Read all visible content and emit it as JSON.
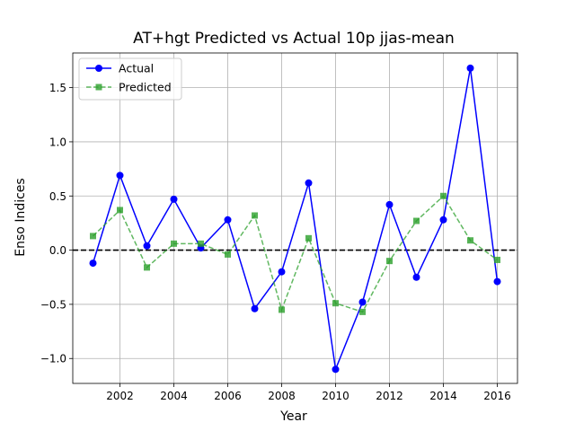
{
  "chart_data": {
    "type": "line",
    "title": "AT+hgt Predicted vs Actual 10p jjas-mean",
    "xlabel": "Year",
    "ylabel": "Enso Indices",
    "xlim": [
      2000.25,
      2016.75
    ],
    "ylim": [
      -1.23,
      1.82
    ],
    "xticks": [
      2002,
      2004,
      2006,
      2008,
      2010,
      2012,
      2014,
      2016
    ],
    "yticks": [
      -1.0,
      -0.5,
      0.0,
      0.5,
      1.0,
      1.5
    ],
    "ytick_labels": [
      "−1.0",
      "−0.5",
      "0.0",
      "0.5",
      "1.0",
      "1.5"
    ],
    "grid": true,
    "legend_position": "top-left",
    "reference_line": {
      "y": 0,
      "style": "dashed",
      "color": "#000000"
    },
    "x": [
      2001,
      2002,
      2003,
      2004,
      2005,
      2006,
      2007,
      2008,
      2009,
      2010,
      2011,
      2012,
      2013,
      2014,
      2015,
      2016
    ],
    "series": [
      {
        "name": "Actual",
        "color": "#0000ff",
        "marker": "circle",
        "line_style": "solid",
        "values": [
          -0.12,
          0.69,
          0.04,
          0.47,
          0.02,
          0.28,
          -0.54,
          -0.2,
          0.62,
          -1.1,
          -0.48,
          0.42,
          -0.25,
          0.28,
          1.68,
          -0.29
        ]
      },
      {
        "name": "Predicted",
        "color": "#2ca02c",
        "marker": "square",
        "line_style": "dashed",
        "values": [
          0.13,
          0.37,
          -0.16,
          0.06,
          0.06,
          -0.04,
          0.32,
          -0.55,
          0.11,
          -0.49,
          -0.57,
          -0.1,
          0.27,
          0.5,
          0.09,
          -0.09
        ]
      }
    ]
  }
}
